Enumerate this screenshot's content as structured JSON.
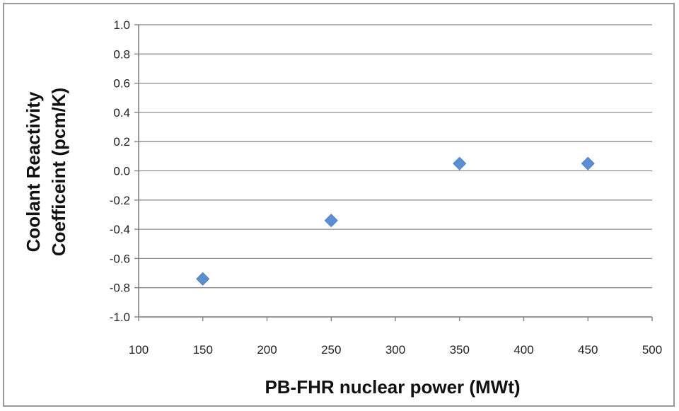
{
  "chart_data": {
    "type": "scatter",
    "title": "",
    "xlabel": "PB-FHR nuclear power (MWt)",
    "ylabel_lines": [
      "Coolant Reactivity",
      "Coefficeint (pcm/K)"
    ],
    "xlim": [
      100,
      500
    ],
    "ylim": [
      -1.0,
      1.0
    ],
    "x_ticks": [
      "100",
      "150",
      "200",
      "250",
      "300",
      "350",
      "400",
      "450",
      "500"
    ],
    "y_ticks": [
      "1.0",
      "0.8",
      "0.6",
      "0.4",
      "0.2",
      "0.0",
      "-0.2",
      "-0.4",
      "-0.6",
      "-0.8",
      "-1.0"
    ],
    "grid": "horizontal",
    "legend": "none",
    "series": [
      {
        "x": [
          150,
          250,
          350,
          450
        ],
        "y": [
          -0.74,
          -0.34,
          0.05,
          0.05
        ],
        "color": "#5b8fd1",
        "marker": "diamond"
      }
    ]
  }
}
